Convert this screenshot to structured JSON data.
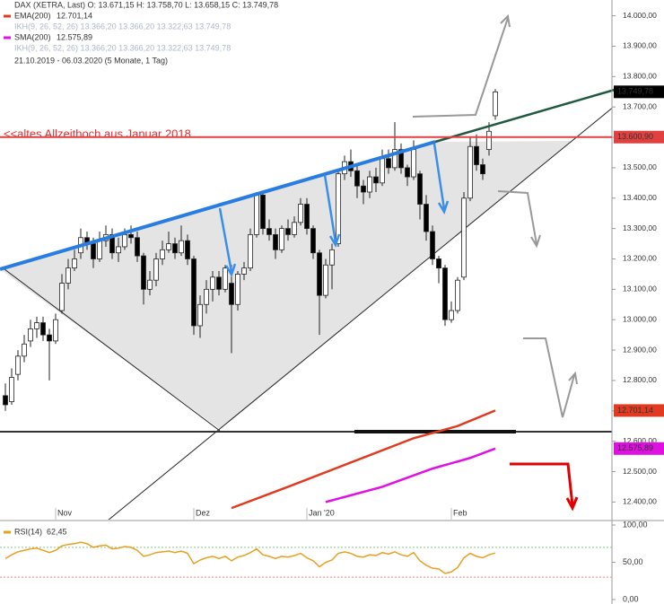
{
  "chart_data": {
    "type": "candlestick",
    "legend": [
      "DAX (XETRA, Last)  O: 13.671,15  H: 13.758,70  L: 13.658,15  C: 13.749,78",
      "IKH(9, 26, 52, 26)  13.366,20  13.366,20  13.322,63  13.749,78",
      "IKH(9, 26, 52, 26)  13.366,20  13.366,20  13.322,63  13.749,78",
      "21.10.2019 - 06.03.2020  (5 Monate, 1 Tag)"
    ],
    "annotation": "<<altes Allzeithoch aus Januar 2018",
    "up_color": "#ffffff",
    "down_color": "#000000",
    "candles": [
      [
        12750,
        12790,
        12700,
        12720
      ],
      [
        12730,
        12840,
        12720,
        12810
      ],
      [
        12820,
        12900,
        12800,
        12880
      ],
      [
        12880,
        12950,
        12860,
        12920
      ],
      [
        12930,
        13000,
        12910,
        12970
      ],
      [
        12970,
        13010,
        12940,
        12990
      ],
      [
        12990,
        13010,
        12930,
        12950
      ],
      [
        12950,
        12970,
        12800,
        12930
      ],
      [
        12930,
        13020,
        12920,
        13000
      ],
      [
        13030,
        13150,
        13020,
        13120
      ],
      [
        13120,
        13200,
        13100,
        13170
      ],
      [
        13170,
        13230,
        13160,
        13200
      ],
      [
        13220,
        13300,
        13200,
        13270
      ],
      [
        13270,
        13290,
        13230,
        13250
      ],
      [
        13250,
        13270,
        13170,
        13200
      ],
      [
        13200,
        13290,
        13190,
        13260
      ],
      [
        13260,
        13310,
        13240,
        13280
      ],
      [
        13280,
        13300,
        13200,
        13220
      ],
      [
        13220,
        13270,
        13190,
        13240
      ],
      [
        13240,
        13300,
        13230,
        13280
      ],
      [
        13280,
        13310,
        13250,
        13270
      ],
      [
        13270,
        13290,
        13190,
        13210
      ],
      [
        13210,
        13220,
        13050,
        13100
      ],
      [
        13100,
        13160,
        13080,
        13130
      ],
      [
        13130,
        13220,
        13110,
        13200
      ],
      [
        13200,
        13260,
        13180,
        13230
      ],
      [
        13230,
        13290,
        13220,
        13250
      ],
      [
        13250,
        13270,
        13200,
        13220
      ],
      [
        13220,
        13310,
        13210,
        13260
      ],
      [
        13260,
        13280,
        13180,
        13200
      ],
      [
        13200,
        13210,
        12950,
        12980
      ],
      [
        12980,
        13080,
        12940,
        13050
      ],
      [
        13050,
        13130,
        13020,
        13100
      ],
      [
        13100,
        13160,
        13060,
        13140
      ],
      [
        13140,
        13160,
        13080,
        13100
      ],
      [
        13100,
        13180,
        13090,
        13170
      ],
      [
        13120,
        13180,
        12890,
        13050
      ],
      [
        13050,
        13160,
        13030,
        13150
      ],
      [
        13150,
        13190,
        13130,
        13170
      ],
      [
        13170,
        13300,
        13160,
        13280
      ],
      [
        13280,
        13420,
        13270,
        13410
      ],
      [
        13410,
        13420,
        13280,
        13300
      ],
      [
        13300,
        13330,
        13260,
        13280
      ],
      [
        13280,
        13300,
        13200,
        13230
      ],
      [
        13230,
        13310,
        13220,
        13300
      ],
      [
        13300,
        13330,
        13260,
        13280
      ],
      [
        13280,
        13340,
        13270,
        13320
      ],
      [
        13320,
        13400,
        13310,
        13380
      ],
      [
        13380,
        13400,
        13280,
        13300
      ],
      [
        13300,
        13310,
        13200,
        13220
      ],
      [
        13220,
        13230,
        12950,
        13080
      ],
      [
        13080,
        13200,
        13070,
        13180
      ],
      [
        13180,
        13250,
        13100,
        13230
      ],
      [
        13250,
        13490,
        13240,
        13480
      ],
      [
        13480,
        13540,
        13460,
        13520
      ],
      [
        13520,
        13560,
        13470,
        13490
      ],
      [
        13490,
        13510,
        13400,
        13440
      ],
      [
        13440,
        13460,
        13380,
        13420
      ],
      [
        13420,
        13490,
        13400,
        13470
      ],
      [
        13470,
        13500,
        13420,
        13450
      ],
      [
        13450,
        13560,
        13440,
        13530
      ],
      [
        13530,
        13560,
        13480,
        13500
      ],
      [
        13500,
        13650,
        13490,
        13560
      ],
      [
        13560,
        13580,
        13480,
        13500
      ],
      [
        13500,
        13510,
        13440,
        13470
      ],
      [
        13470,
        13590,
        13460,
        13560
      ],
      [
        13480,
        13490,
        13330,
        13380
      ],
      [
        13380,
        13410,
        13260,
        13290
      ],
      [
        13290,
        13310,
        13180,
        13200
      ],
      [
        13200,
        13210,
        13120,
        13170
      ],
      [
        13170,
        13180,
        12980,
        13000
      ],
      [
        13000,
        13060,
        12990,
        13030
      ],
      [
        13030,
        13140,
        13020,
        13130
      ],
      [
        13140,
        13420,
        13130,
        13400
      ],
      [
        13400,
        13600,
        13390,
        13570
      ],
      [
        13570,
        13610,
        13490,
        13510
      ],
      [
        13510,
        13530,
        13460,
        13480
      ],
      [
        13560,
        13650,
        13540,
        13620
      ],
      [
        13671.15,
        13758.7,
        13658.15,
        13749.78
      ]
    ],
    "indicators": [
      {
        "name": "EMA(200)",
        "value_label": "12.701,14",
        "color": "#e03a20",
        "x": [
          36,
          45,
          55,
          65,
          72,
          78
        ],
        "values": [
          12380,
          12450,
          12530,
          12610,
          12650,
          12701.14
        ]
      },
      {
        "name": "SMA(200)",
        "value_label": "12.575,89",
        "color": "#e010e0",
        "x": [
          51,
          60,
          68,
          74,
          78
        ],
        "values": [
          12400,
          12450,
          12510,
          12545,
          12575.89
        ]
      }
    ],
    "price_marks": [
      {
        "value": 13749.78,
        "label": "13.749,78",
        "color": "#000000"
      },
      {
        "value": 13600.9,
        "label": "13.600,90",
        "color": "#e04040"
      }
    ],
    "ylim": [
      12342,
      14052
    ],
    "yticks": [
      {
        "value": 14000,
        "label": "14.000,00"
      },
      {
        "value": 13900,
        "label": "13.900,00"
      },
      {
        "value": 13800,
        "label": "13.800,00"
      },
      {
        "value": 13700,
        "label": "13.700,00"
      },
      {
        "value": 13600,
        "label": "13.600,00"
      },
      {
        "value": 13500,
        "label": "13.500,00"
      },
      {
        "value": 13400,
        "label": "13.400,00"
      },
      {
        "value": 13300,
        "label": "13.300,00"
      },
      {
        "value": 13200,
        "label": "13.200,00"
      },
      {
        "value": 13100,
        "label": "13.100,00"
      },
      {
        "value": 13000,
        "label": "13.000,00"
      },
      {
        "value": 12900,
        "label": "12.900,00"
      },
      {
        "value": 12800,
        "label": "12.800,00"
      },
      {
        "value": 12700,
        "label": "12.700,00"
      },
      {
        "value": 12600,
        "label": "12.600,00"
      },
      {
        "value": 12500,
        "label": "12.500,00"
      },
      {
        "value": 12400,
        "label": "12.400,00"
      }
    ],
    "xticks": [
      {
        "value": 8,
        "label": "Nov"
      },
      {
        "value": 30,
        "label": "Dez"
      },
      {
        "value": 48,
        "label": "Jan '20"
      },
      {
        "value": 71,
        "label": "Feb"
      }
    ],
    "rsi": {
      "name": "RSI(14)",
      "value_label": "62,45",
      "color": "#e8a020",
      "values": [
        55,
        60,
        64,
        66,
        68,
        69,
        66,
        63,
        66,
        72,
        74,
        75,
        77,
        75,
        70,
        72,
        73,
        68,
        69,
        71,
        70,
        66,
        58,
        60,
        63,
        64,
        65,
        63,
        65,
        62,
        48,
        53,
        56,
        58,
        55,
        58,
        52,
        57,
        59,
        63,
        68,
        60,
        58,
        55,
        58,
        57,
        59,
        62,
        56,
        52,
        44,
        50,
        53,
        62,
        64,
        62,
        58,
        57,
        60,
        59,
        63,
        61,
        64,
        60,
        58,
        63,
        52,
        46,
        42,
        41,
        35,
        37,
        43,
        56,
        62,
        58,
        56,
        60,
        62.45
      ],
      "ylim": [
        0,
        100
      ],
      "yticks": [
        {
          "value": 100,
          "label": "100,00"
        },
        {
          "value": 50,
          "label": "50,00"
        },
        {
          "value": 0,
          "label": "0,00"
        }
      ]
    }
  }
}
